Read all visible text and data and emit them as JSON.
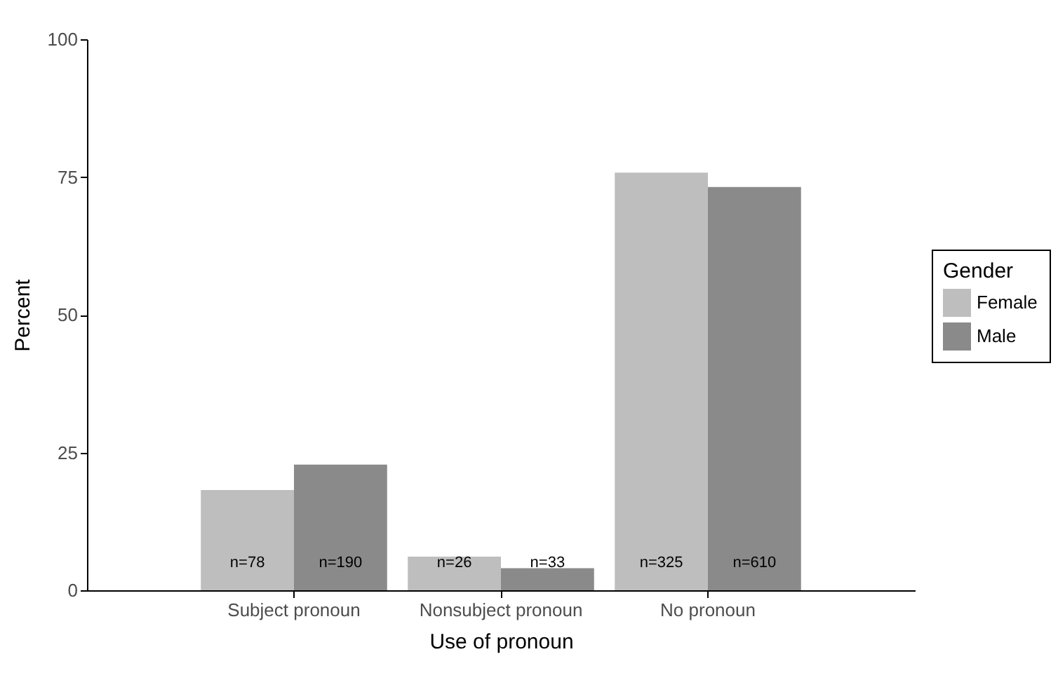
{
  "chart_data": {
    "type": "bar",
    "xlabel": "Use of pronoun",
    "ylabel": "Percent",
    "legend_title": "Gender",
    "categories": [
      "Subject pronoun",
      "Nonsubject pronoun",
      "No pronoun"
    ],
    "series": [
      {
        "name": "Female",
        "color": "#bebebe",
        "values": [
          18.2,
          6.1,
          75.8
        ]
      },
      {
        "name": "Male",
        "color": "#8a8a8a",
        "values": [
          22.8,
          4.0,
          73.2
        ]
      }
    ],
    "annotations": [
      {
        "text": "n=78",
        "x": "Subject pronoun",
        "y": 5
      },
      {
        "text": "n=190",
        "x": "Subject pronoun",
        "y": 5
      },
      {
        "text": "n=26",
        "x": "Nonsubject pronoun",
        "y": 5
      },
      {
        "text": "n=33",
        "x": "Nonsubject pronoun",
        "y": 5
      },
      {
        "text": "n=325",
        "x": "No pronoun",
        "y": 5
      },
      {
        "text": "n=610",
        "x": "No pronoun",
        "y": 5
      }
    ],
    "ylim": [
      0,
      100
    ],
    "yticks": [
      0,
      25,
      50,
      75,
      100
    ],
    "grid": false,
    "legend": "right"
  }
}
